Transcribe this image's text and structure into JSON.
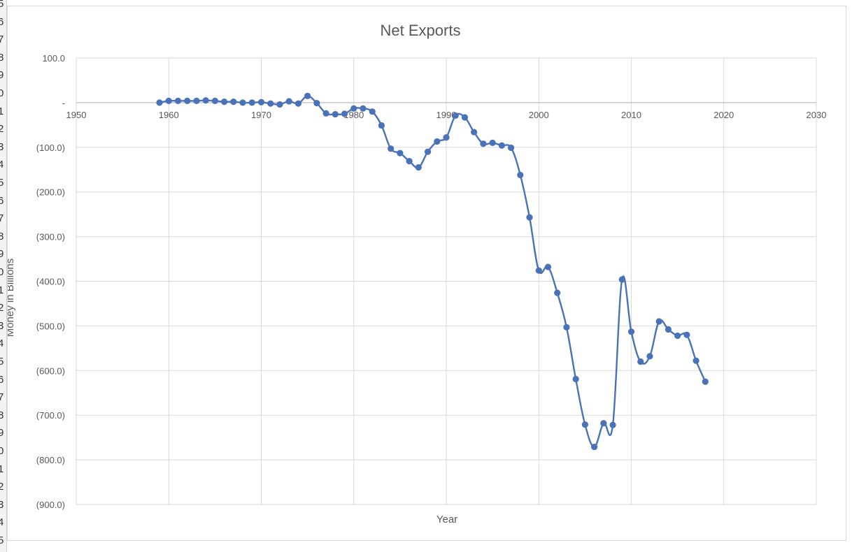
{
  "row_numbers": [
    "5",
    "6",
    "7",
    "8",
    "9",
    "0",
    "1",
    "2",
    "3",
    "4",
    "5",
    "6",
    "7",
    "8",
    "9",
    "0",
    "1",
    "2",
    "3",
    "4",
    "5",
    "6",
    "7",
    "8",
    "9",
    "0",
    "1",
    "2",
    "3",
    "4",
    "5"
  ],
  "colors": {
    "series": "#4a72b8",
    "grid": "#d9d9d9",
    "axis": "#bfbfbf",
    "text": "#595959"
  },
  "chart_data": {
    "type": "scatter",
    "title": "Net Exports",
    "xlabel": "Year",
    "ylabel": "Money in Billions",
    "xlim": [
      1950,
      2030
    ],
    "ylim": [
      -900,
      100
    ],
    "x_ticks": [
      1950,
      1960,
      1970,
      1980,
      1990,
      2000,
      2010,
      2020,
      2030
    ],
    "x_tick_labels": [
      "1950",
      "1960",
      "1970",
      "1980",
      "1990",
      "2000",
      "2010",
      "2020",
      "2030"
    ],
    "y_ticks": [
      100,
      0,
      -100,
      -200,
      -300,
      -400,
      -500,
      -600,
      -700,
      -800,
      -900
    ],
    "y_tick_labels": [
      "100.0",
      "-",
      "(100.0)",
      "(200.0)",
      "(300.0)",
      "(400.0)",
      "(500.0)",
      "(600.0)",
      "(700.0)",
      "(800.0)",
      "(900.0)"
    ],
    "grid": true,
    "smooth_line": true,
    "markers": true,
    "series": [
      {
        "x": [
          1959,
          1960,
          1961,
          1962,
          1963,
          1964,
          1965,
          1966,
          1967,
          1968,
          1969,
          1970,
          1971,
          1972,
          1973,
          1974,
          1975,
          1976,
          1977,
          1978,
          1979,
          1980,
          1981,
          1982,
          1983,
          1984,
          1985,
          1986,
          1987,
          1988,
          1989,
          1990,
          1991,
          1992,
          1993,
          1994,
          1995,
          1996,
          1997,
          1998,
          1999,
          2000,
          2001,
          2002,
          2003,
          2004,
          2005,
          2006,
          2007,
          2008,
          2009,
          2010,
          2011,
          2012,
          2013,
          2014,
          2015,
          2016,
          2017,
          2018
        ],
        "values": [
          0,
          4,
          4,
          4,
          4,
          5,
          4,
          2,
          2,
          0,
          0,
          1,
          -2,
          -4,
          3,
          -2,
          15,
          -1,
          -24,
          -26,
          -25,
          -13,
          -13,
          -20,
          -51,
          -103,
          -113,
          -131,
          -145,
          -110,
          -87,
          -78,
          -29,
          -33,
          -66,
          -92,
          -90,
          -96,
          -101,
          -162,
          -257,
          -376,
          -368,
          -426,
          -503,
          -619,
          -721,
          -771,
          -718,
          -722,
          -396,
          -513,
          -580,
          -568,
          -490,
          -508,
          -522,
          -520,
          -578,
          -625
        ]
      }
    ]
  }
}
